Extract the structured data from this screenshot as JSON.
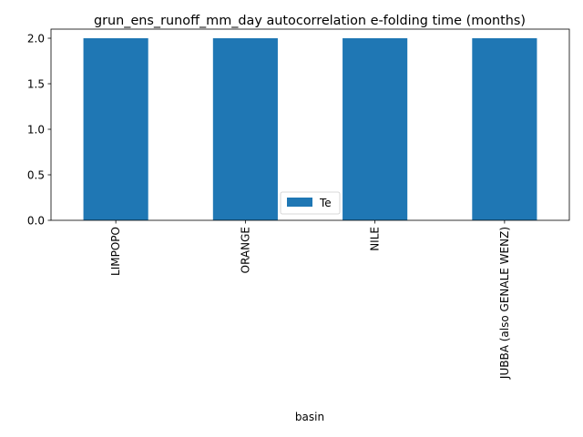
{
  "chart_data": {
    "type": "bar",
    "title": "grun_ens_runoff_mm_day autocorrelation e-folding time (months)",
    "xlabel": "basin",
    "ylabel": "",
    "categories": [
      "LIMPOPO",
      "ORANGE",
      "NILE",
      "JUBBA (also GENALE WENZ)"
    ],
    "series": [
      {
        "name": "Te",
        "values": [
          2.0,
          2.0,
          2.0,
          2.0
        ]
      }
    ],
    "ylim": [
      0,
      2.1
    ],
    "yticks": [
      "0.0",
      "0.5",
      "1.0",
      "1.5",
      "2.0"
    ],
    "grid": false,
    "legend": "lower center",
    "colors": {
      "bar": "#1f77b4",
      "axis": "#000000"
    }
  }
}
